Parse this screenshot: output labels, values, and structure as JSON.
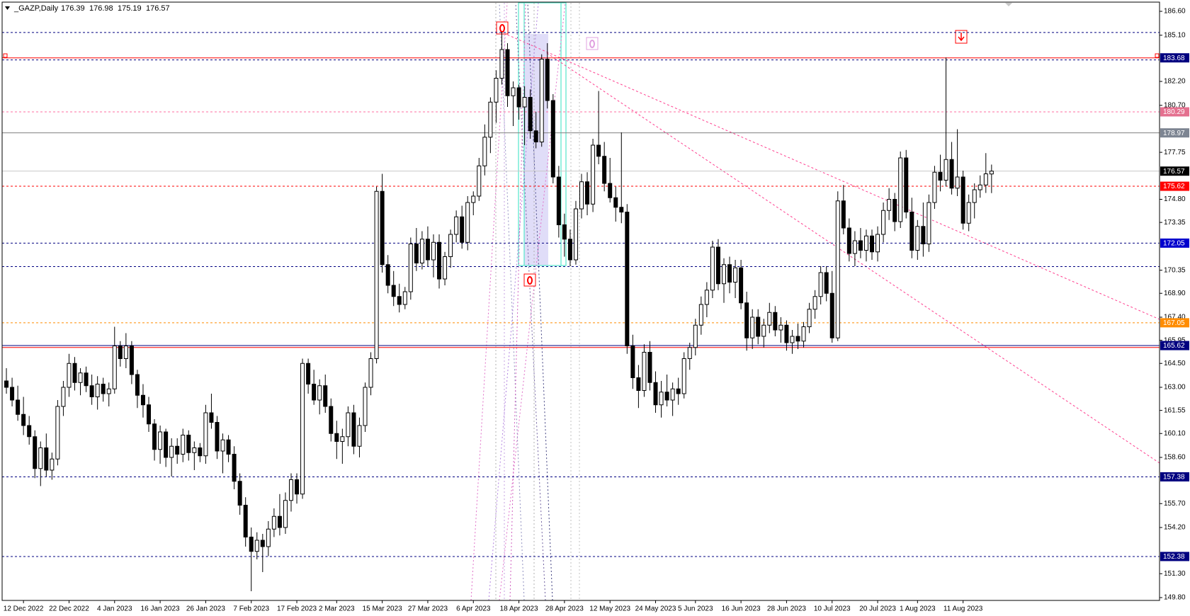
{
  "chart_data": {
    "type": "candlestick",
    "symbol": "_GAZP,Daily",
    "xlim": [
      -0.75,
      202.5
    ],
    "ylim": [
      149.8,
      186.6
    ],
    "yticks": [
      {
        "value": 186.6,
        "label": "186.60"
      },
      {
        "value": 185.1,
        "label": "185.10"
      },
      {
        "value": 182.2,
        "label": "182.20"
      },
      {
        "value": 180.7,
        "label": "180.70"
      },
      {
        "value": 177.75,
        "label": "177.75"
      },
      {
        "value": 174.8,
        "label": "174.80"
      },
      {
        "value": 173.35,
        "label": "173.35"
      },
      {
        "value": 170.35,
        "label": "170.35"
      },
      {
        "value": 168.9,
        "label": "168.90"
      },
      {
        "value": 167.4,
        "label": "167.40"
      },
      {
        "value": 165.95,
        "label": "165.95"
      },
      {
        "value": 164.5,
        "label": "164.50"
      },
      {
        "value": 163.0,
        "label": "163.00"
      },
      {
        "value": 161.55,
        "label": "161.55"
      },
      {
        "value": 160.1,
        "label": "160.10"
      },
      {
        "value": 158.6,
        "label": "158.60"
      },
      {
        "value": 155.7,
        "label": "155.70"
      },
      {
        "value": 154.2,
        "label": "154.20"
      },
      {
        "value": 151.3,
        "label": "151.30"
      },
      {
        "value": 149.8,
        "label": "149.80"
      }
    ],
    "xticks": [
      {
        "value": 3,
        "label": "12 Dec 2022"
      },
      {
        "value": 11,
        "label": "22 Dec 2022"
      },
      {
        "value": 19,
        "label": "4 Jan 2023"
      },
      {
        "value": 27,
        "label": "16 Jan 2023"
      },
      {
        "value": 35,
        "label": "26 Jan 2023"
      },
      {
        "value": 43,
        "label": "7 Feb 2023"
      },
      {
        "value": 51,
        "label": "17 Feb 2023"
      },
      {
        "value": 58,
        "label": "2 Mar 2023"
      },
      {
        "value": 66,
        "label": "15 Mar 2023"
      },
      {
        "value": 74,
        "label": "27 Mar 2023"
      },
      {
        "value": 82,
        "label": "6 Apr 2023"
      },
      {
        "value": 90,
        "label": "18 Apr 2023"
      },
      {
        "value": 98,
        "label": "28 Apr 2023"
      },
      {
        "value": 106,
        "label": "12 May 2023"
      },
      {
        "value": 114,
        "label": "24 May 2023"
      },
      {
        "value": 121,
        "label": "5 Jun 2023"
      },
      {
        "value": 129,
        "label": "16 Jun 2023"
      },
      {
        "value": 137,
        "label": "28 Jun 2023"
      },
      {
        "value": 145,
        "label": "10 Jul 2023"
      },
      {
        "value": 153,
        "label": "20 Jul 2023"
      },
      {
        "value": 160,
        "label": "1 Aug 2023"
      },
      {
        "value": 168,
        "label": "11 Aug 2023"
      }
    ],
    "up_color": "#ffffff",
    "down_color": "#000000",
    "outline_color": "#000000",
    "marked_levels": [
      {
        "value": 183.68,
        "color": "#ff0000",
        "style": "solid",
        "label_color": "#000080"
      },
      {
        "value": 180.29,
        "color": "#ff6fa0",
        "style": "dashed",
        "label_color": "#e4708f"
      },
      {
        "value": 178.97,
        "color": "#808080",
        "style": "solid",
        "label_color": "#7d8592"
      },
      {
        "value": 176.57,
        "color": "#c8c8c8",
        "style": "solid",
        "label_color": "#000000"
      },
      {
        "value": 175.62,
        "color": "#ff0000",
        "style": "dashed",
        "label_color": "#ff0000"
      },
      {
        "value": 172.05,
        "color": "#000080",
        "style": "dashed",
        "label_color": "#0000cd"
      },
      {
        "value": 167.05,
        "color": "#ff8c00",
        "style": "dashed",
        "label_color": "#ff8c00"
      },
      {
        "value": 165.62,
        "color": "#000080",
        "style": "solid",
        "label_color": "#000080"
      },
      {
        "value": 157.38,
        "color": "#000080",
        "style": "dashed",
        "label_color": "#000080"
      },
      {
        "value": 152.38,
        "color": "#000080",
        "style": "dashed",
        "label_color": "#000080"
      }
    ],
    "plain_levels": [
      {
        "value": 185.27,
        "color": "#000080",
        "style": "dashed"
      },
      {
        "value": 183.55,
        "color": "#000080",
        "style": "dashed"
      },
      {
        "value": 170.58,
        "color": "#000080",
        "style": "dashed"
      },
      {
        "value": 165.5,
        "color": "#ff0000",
        "style": "solid"
      }
    ],
    "candles": [
      [
        163.4,
        164.2,
        162.6,
        163.0
      ],
      [
        163.0,
        163.6,
        161.8,
        162.2
      ],
      [
        162.2,
        163.1,
        160.9,
        161.3
      ],
      [
        161.3,
        162.4,
        160.0,
        160.6
      ],
      [
        160.6,
        161.2,
        159.4,
        159.9
      ],
      [
        159.9,
        160.3,
        157.3,
        157.9
      ],
      [
        157.9,
        159.6,
        156.8,
        159.2
      ],
      [
        159.2,
        160.1,
        157.4,
        157.8
      ],
      [
        157.8,
        158.9,
        157.2,
        158.5
      ],
      [
        158.5,
        162.2,
        158.1,
        161.8
      ],
      [
        161.8,
        163.4,
        161.2,
        163.0
      ],
      [
        163.0,
        165.1,
        162.4,
        164.5
      ],
      [
        164.5,
        164.9,
        162.8,
        163.3
      ],
      [
        163.3,
        164.2,
        162.5,
        163.9
      ],
      [
        163.9,
        164.3,
        162.7,
        163.1
      ],
      [
        163.1,
        163.8,
        161.9,
        162.4
      ],
      [
        162.4,
        163.7,
        161.6,
        163.2
      ],
      [
        163.2,
        163.6,
        162.1,
        162.6
      ],
      [
        162.6,
        163.3,
        161.8,
        162.9
      ],
      [
        162.9,
        166.8,
        162.6,
        165.6
      ],
      [
        165.6,
        165.9,
        164.3,
        164.8
      ],
      [
        164.8,
        166.4,
        164.2,
        165.6
      ],
      [
        165.6,
        165.9,
        163.2,
        163.8
      ],
      [
        163.8,
        164.1,
        161.7,
        162.5
      ],
      [
        162.5,
        163.2,
        161.1,
        161.9
      ],
      [
        161.9,
        162.4,
        160.2,
        160.7
      ],
      [
        160.7,
        161.0,
        158.4,
        159.1
      ],
      [
        159.1,
        160.6,
        158.2,
        160.2
      ],
      [
        160.2,
        160.4,
        158.0,
        158.6
      ],
      [
        158.6,
        159.8,
        157.4,
        159.3
      ],
      [
        159.3,
        159.8,
        158.2,
        158.8
      ],
      [
        158.8,
        160.4,
        158.3,
        160.0
      ],
      [
        160.0,
        160.3,
        158.4,
        158.9
      ],
      [
        158.9,
        159.6,
        157.8,
        159.2
      ],
      [
        159.2,
        159.5,
        158.3,
        158.7
      ],
      [
        158.7,
        161.9,
        158.2,
        161.4
      ],
      [
        161.4,
        162.6,
        160.4,
        160.8
      ],
      [
        160.8,
        161.2,
        158.5,
        159.0
      ],
      [
        159.0,
        160.1,
        157.6,
        159.7
      ],
      [
        159.7,
        160.0,
        158.3,
        158.8
      ],
      [
        158.8,
        159.3,
        156.6,
        157.1
      ],
      [
        157.1,
        157.6,
        155.0,
        155.6
      ],
      [
        155.6,
        156.1,
        153.0,
        153.6
      ],
      [
        153.6,
        154.2,
        150.2,
        152.7
      ],
      [
        152.7,
        153.9,
        152.2,
        153.4
      ],
      [
        153.4,
        153.8,
        151.4,
        153.0
      ],
      [
        153.0,
        154.6,
        152.4,
        154.1
      ],
      [
        154.1,
        155.4,
        153.6,
        154.9
      ],
      [
        154.9,
        156.3,
        153.7,
        154.2
      ],
      [
        154.2,
        156.4,
        153.8,
        155.9
      ],
      [
        155.9,
        157.6,
        155.2,
        157.2
      ],
      [
        157.2,
        157.6,
        155.7,
        156.3
      ],
      [
        156.3,
        164.8,
        156.0,
        164.5
      ],
      [
        164.5,
        164.8,
        162.6,
        163.2
      ],
      [
        163.2,
        164.1,
        161.9,
        162.2
      ],
      [
        162.2,
        163.5,
        161.3,
        163.1
      ],
      [
        163.1,
        163.8,
        161.4,
        161.8
      ],
      [
        161.8,
        162.3,
        159.6,
        160.1
      ],
      [
        160.1,
        160.9,
        158.5,
        159.6
      ],
      [
        159.6,
        160.4,
        158.2,
        159.9
      ],
      [
        159.9,
        161.8,
        159.3,
        161.4
      ],
      [
        161.4,
        161.9,
        158.8,
        159.3
      ],
      [
        159.3,
        161.1,
        158.6,
        160.6
      ],
      [
        160.6,
        163.3,
        160.2,
        163.0
      ],
      [
        163.0,
        165.2,
        162.5,
        164.8
      ],
      [
        164.8,
        175.6,
        164.5,
        175.3
      ],
      [
        175.3,
        176.4,
        170.2,
        170.7
      ],
      [
        170.7,
        171.3,
        168.9,
        169.4
      ],
      [
        169.4,
        170.3,
        168.1,
        168.7
      ],
      [
        168.7,
        169.5,
        167.7,
        168.2
      ],
      [
        168.2,
        169.3,
        167.9,
        169.0
      ],
      [
        169.0,
        172.4,
        168.5,
        172.0
      ],
      [
        172.0,
        173.0,
        170.3,
        170.8
      ],
      [
        170.8,
        172.8,
        170.4,
        172.3
      ],
      [
        172.3,
        173.1,
        170.6,
        171.0
      ],
      [
        171.0,
        172.6,
        169.9,
        172.1
      ],
      [
        172.1,
        172.6,
        169.2,
        169.8
      ],
      [
        169.8,
        171.5,
        169.4,
        171.2
      ],
      [
        171.2,
        172.9,
        170.5,
        172.6
      ],
      [
        172.6,
        174.1,
        172.1,
        173.7
      ],
      [
        173.7,
        174.4,
        171.7,
        172.1
      ],
      [
        172.1,
        175.0,
        171.6,
        174.6
      ],
      [
        174.6,
        175.3,
        173.8,
        175.0
      ],
      [
        175.0,
        177.4,
        174.7,
        176.9
      ],
      [
        176.9,
        179.5,
        176.3,
        178.7
      ],
      [
        178.7,
        181.2,
        177.7,
        180.9
      ],
      [
        180.9,
        182.9,
        179.6,
        182.4
      ],
      [
        182.4,
        185.3,
        182.0,
        184.2
      ],
      [
        184.2,
        184.6,
        180.6,
        181.3
      ],
      [
        181.3,
        182.2,
        179.4,
        181.8
      ],
      [
        181.8,
        182.0,
        179.8,
        180.6
      ],
      [
        180.6,
        181.9,
        178.2,
        181.2
      ],
      [
        181.2,
        181.7,
        178.6,
        179.1
      ],
      [
        179.1,
        180.3,
        178.0,
        178.4
      ],
      [
        178.4,
        183.9,
        178.1,
        183.6
      ],
      [
        183.6,
        184.6,
        180.5,
        181.0
      ],
      [
        181.0,
        181.4,
        175.8,
        176.2
      ],
      [
        176.2,
        176.9,
        172.4,
        173.2
      ],
      [
        173.2,
        173.9,
        171.2,
        172.3
      ],
      [
        172.3,
        172.9,
        170.6,
        171.0
      ],
      [
        171.0,
        174.7,
        170.7,
        174.2
      ],
      [
        174.2,
        176.4,
        173.6,
        175.9
      ],
      [
        175.9,
        176.5,
        173.8,
        174.5
      ],
      [
        174.5,
        178.6,
        174.0,
        178.2
      ],
      [
        178.2,
        181.6,
        177.0,
        177.5
      ],
      [
        177.5,
        178.4,
        175.3,
        175.8
      ],
      [
        175.8,
        177.4,
        174.6,
        174.9
      ],
      [
        174.9,
        175.6,
        173.4,
        174.3
      ],
      [
        174.3,
        179.0,
        173.3,
        174.0
      ],
      [
        174.0,
        174.5,
        165.1,
        165.6
      ],
      [
        165.6,
        166.3,
        162.9,
        163.6
      ],
      [
        163.6,
        164.4,
        161.7,
        162.8
      ],
      [
        162.8,
        165.7,
        162.4,
        165.2
      ],
      [
        165.2,
        165.9,
        162.8,
        163.3
      ],
      [
        163.3,
        164.0,
        161.4,
        161.9
      ],
      [
        161.9,
        163.4,
        161.1,
        162.7
      ],
      [
        162.7,
        163.8,
        161.8,
        162.2
      ],
      [
        162.2,
        163.3,
        161.2,
        162.9
      ],
      [
        162.9,
        163.6,
        161.9,
        162.6
      ],
      [
        162.6,
        165.2,
        162.3,
        164.8
      ],
      [
        164.8,
        165.8,
        164.1,
        165.5
      ],
      [
        165.5,
        167.3,
        165.0,
        166.9
      ],
      [
        166.9,
        168.7,
        166.3,
        168.2
      ],
      [
        168.2,
        169.6,
        167.4,
        169.1
      ],
      [
        169.1,
        172.2,
        168.6,
        171.8
      ],
      [
        171.8,
        172.3,
        169.1,
        169.5
      ],
      [
        169.5,
        171.1,
        168.3,
        170.7
      ],
      [
        170.7,
        171.2,
        168.9,
        169.6
      ],
      [
        169.6,
        171.0,
        168.6,
        170.5
      ],
      [
        170.5,
        171.0,
        167.9,
        168.3
      ],
      [
        168.3,
        169.0,
        165.3,
        166.1
      ],
      [
        166.1,
        167.9,
        165.4,
        167.4
      ],
      [
        167.4,
        167.9,
        165.7,
        166.2
      ],
      [
        166.2,
        167.3,
        165.5,
        166.9
      ],
      [
        166.9,
        168.3,
        166.4,
        167.7
      ],
      [
        167.7,
        168.1,
        166.2,
        166.6
      ],
      [
        166.6,
        167.4,
        165.8,
        166.9
      ],
      [
        166.9,
        167.2,
        165.3,
        165.8
      ],
      [
        165.8,
        166.6,
        165.1,
        166.2
      ],
      [
        166.2,
        167.0,
        165.4,
        165.9
      ],
      [
        165.9,
        167.1,
        165.5,
        166.8
      ],
      [
        166.8,
        168.3,
        166.4,
        167.9
      ],
      [
        167.9,
        169.1,
        167.3,
        168.7
      ],
      [
        168.7,
        170.6,
        168.2,
        170.2
      ],
      [
        170.2,
        170.6,
        168.4,
        168.9
      ],
      [
        168.9,
        170.3,
        165.8,
        166.1
      ],
      [
        166.1,
        175.3,
        165.9,
        174.7
      ],
      [
        174.7,
        175.7,
        172.6,
        173.0
      ],
      [
        173.0,
        173.6,
        170.9,
        171.4
      ],
      [
        171.4,
        172.8,
        170.6,
        172.2
      ],
      [
        172.2,
        173.0,
        171.1,
        171.6
      ],
      [
        171.6,
        172.9,
        170.9,
        172.5
      ],
      [
        172.5,
        172.9,
        171.0,
        171.5
      ],
      [
        171.5,
        173.1,
        170.9,
        172.6
      ],
      [
        172.6,
        174.6,
        172.1,
        174.1
      ],
      [
        174.1,
        175.5,
        173.5,
        174.8
      ],
      [
        174.8,
        175.2,
        172.8,
        173.4
      ],
      [
        173.4,
        177.8,
        173.0,
        177.4
      ],
      [
        177.4,
        177.9,
        173.6,
        174.0
      ],
      [
        174.0,
        174.9,
        171.1,
        171.6
      ],
      [
        171.6,
        173.5,
        171.0,
        173.1
      ],
      [
        173.1,
        174.6,
        171.2,
        172.0
      ],
      [
        172.0,
        175.1,
        171.5,
        174.6
      ],
      [
        174.6,
        176.9,
        174.2,
        176.5
      ],
      [
        176.5,
        177.6,
        175.3,
        176.0
      ],
      [
        176.0,
        183.7,
        175.6,
        177.3
      ],
      [
        177.3,
        178.4,
        175.1,
        175.5
      ],
      [
        175.5,
        179.2,
        175.0,
        176.2
      ],
      [
        176.2,
        176.6,
        172.9,
        173.3
      ],
      [
        173.3,
        175.1,
        172.8,
        174.6
      ],
      [
        174.6,
        175.8,
        173.6,
        175.4
      ],
      [
        175.4,
        176.3,
        174.9,
        175.7
      ],
      [
        175.7,
        177.7,
        175.2,
        176.4
      ],
      [
        176.39,
        176.98,
        175.19,
        176.57
      ]
    ]
  }
}
